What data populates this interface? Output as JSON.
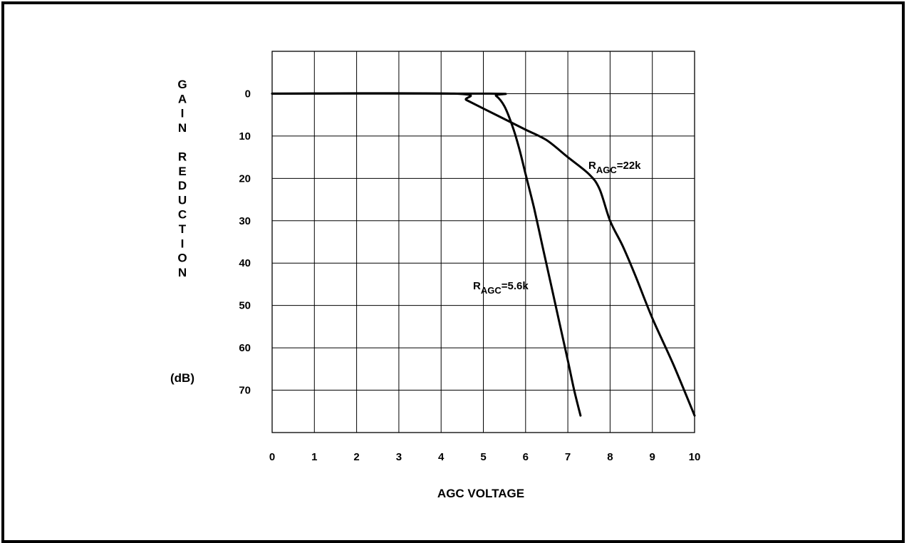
{
  "chart_data": {
    "type": "line",
    "ylabel_letters": [
      "G",
      "A",
      "I",
      "N",
      "",
      "R",
      "E",
      "D",
      "U",
      "C",
      "T",
      "I",
      "O",
      "N"
    ],
    "ylabel_unit": "(dB)",
    "xlabel": "AGC VOLTAGE",
    "xlim": [
      0,
      10
    ],
    "ylim": [
      -10,
      80
    ],
    "y_inverted": true,
    "grid": true,
    "x_ticks": [
      "0",
      "1",
      "2",
      "3",
      "4",
      "5",
      "6",
      "7",
      "8",
      "9",
      "10"
    ],
    "y_ticks": [
      "0",
      "10",
      "20",
      "30",
      "40",
      "50",
      "60",
      "70"
    ],
    "series": [
      {
        "name": "R_AGC=5.6k",
        "label_main": "R",
        "label_sub": "AGC",
        "label_tail": "=5.6k",
        "points": [
          [
            0,
            0
          ],
          [
            5.1,
            0
          ],
          [
            5.3,
            0.5
          ],
          [
            5.5,
            3
          ],
          [
            5.7,
            8
          ],
          [
            5.85,
            13
          ],
          [
            6.0,
            19
          ],
          [
            6.2,
            27
          ],
          [
            6.4,
            36
          ],
          [
            6.6,
            45
          ],
          [
            6.8,
            54
          ],
          [
            7.0,
            63
          ],
          [
            7.15,
            70
          ],
          [
            7.3,
            76
          ]
        ]
      },
      {
        "name": "R_AGC=22k",
        "label_main": "R",
        "label_sub": "AGC",
        "label_tail": "=22k",
        "points": [
          [
            0,
            0
          ],
          [
            4.3,
            0
          ],
          [
            4.6,
            1.5
          ],
          [
            5.0,
            3.5
          ],
          [
            5.5,
            6
          ],
          [
            6.0,
            8.5
          ],
          [
            6.5,
            11
          ],
          [
            7.0,
            15
          ],
          [
            7.5,
            19
          ],
          [
            7.75,
            22.5
          ],
          [
            8.0,
            30
          ],
          [
            8.3,
            36
          ],
          [
            8.6,
            43
          ],
          [
            9.0,
            53
          ],
          [
            9.5,
            64
          ],
          [
            10.0,
            76
          ]
        ]
      }
    ]
  }
}
